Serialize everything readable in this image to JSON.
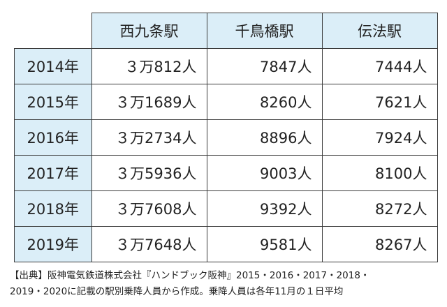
{
  "table": {
    "header": [
      "西九条駅",
      "千鳥橋駅",
      "伝法駅"
    ],
    "rows": [
      [
        "2014年",
        "３万812人",
        "7847人",
        "7444人"
      ],
      [
        "2015年",
        "３万1689人",
        "8260人",
        "7621人"
      ],
      [
        "2016年",
        "３万2734人",
        "8896人",
        "7924人"
      ],
      [
        "2017年",
        "３万5936人",
        "9003人",
        "8100人"
      ],
      [
        "2018年",
        "３万7608人",
        "9392人",
        "8272人"
      ],
      [
        "2019年",
        "３万7648人",
        "9581人",
        "8267人"
      ]
    ]
  },
  "note": [
    "【出典】阪神電気鉄道株式会社『ハンドブック阪神』2015・2016・2017・2018・",
    "2019・2020に記載の駅別乗降人員から作成。乗降人員は各年11月の１日平均"
  ]
}
